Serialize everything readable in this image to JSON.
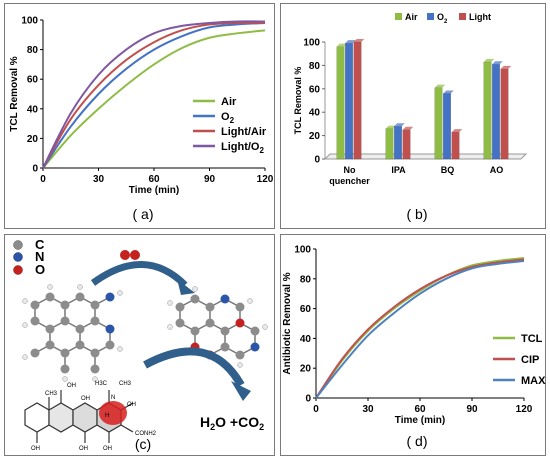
{
  "captions": {
    "a": "( a)",
    "b": "( b)",
    "c": "(c)",
    "d": "( d)"
  },
  "colors": {
    "air": "#8fbc45",
    "o2": "#4472c4",
    "light": "#c0504d",
    "light_o2": "#7e58a2",
    "max": "#4f81bd"
  },
  "chart_data": [
    {
      "id": "a",
      "type": "line",
      "ylabel": "TCL Removal %",
      "xlabel": "Time (min)",
      "xlim": [
        0,
        120
      ],
      "ylim": [
        0,
        100
      ],
      "xticks": [
        "0",
        "30",
        "60",
        "90",
        "120"
      ],
      "yticks": [
        "0",
        "20",
        "40",
        "60",
        "80",
        "100"
      ],
      "legend": "bottom-right",
      "series": [
        {
          "name": "Air",
          "color": "#8fbc45",
          "x": [
            0,
            15,
            30,
            45,
            60,
            75,
            90,
            105,
            120
          ],
          "values": [
            0,
            22,
            40,
            56,
            70,
            81,
            88,
            91,
            93
          ]
        },
        {
          "name": "O2",
          "color": "#4472c4",
          "x": [
            0,
            15,
            30,
            45,
            60,
            75,
            90,
            105,
            120
          ],
          "values": [
            0,
            28,
            50,
            67,
            80,
            89,
            95,
            97,
            98
          ]
        },
        {
          "name": "Light/Air",
          "color": "#c0504d",
          "x": [
            0,
            15,
            30,
            45,
            60,
            75,
            90,
            105,
            120
          ],
          "values": [
            0,
            33,
            56,
            73,
            85,
            93,
            97,
            98,
            98
          ]
        },
        {
          "name": "Light/O2",
          "color": "#7e58a2",
          "x": [
            0,
            15,
            30,
            45,
            60,
            75,
            90,
            105,
            120
          ],
          "values": [
            0,
            37,
            63,
            80,
            91,
            96,
            98,
            99,
            99
          ]
        }
      ]
    },
    {
      "id": "b",
      "type": "bar",
      "ylabel": "TCL Removal %",
      "ylim": [
        0,
        100
      ],
      "yticks": [
        "0",
        "20",
        "40",
        "60",
        "80",
        "100"
      ],
      "categories": [
        "No quencher",
        "IPA",
        "BQ",
        "AO"
      ],
      "legend": "top",
      "series": [
        {
          "name": "Air",
          "color": "#8fbc45",
          "values": [
            96,
            26,
            61,
            83
          ]
        },
        {
          "name": "O2",
          "color": "#4472c4",
          "values": [
            99,
            28,
            56,
            81
          ]
        },
        {
          "name": "Light",
          "color": "#c0504d",
          "values": [
            100,
            25,
            23,
            77
          ]
        }
      ]
    },
    {
      "id": "d",
      "type": "line",
      "ylabel": "Antibiotic Removal %",
      "xlabel": "Time (min)",
      "xlim": [
        0,
        120
      ],
      "ylim": [
        0,
        100
      ],
      "xticks": [
        "0",
        "30",
        "60",
        "90",
        "120"
      ],
      "yticks": [
        "0",
        "20",
        "40",
        "60",
        "80",
        "100"
      ],
      "legend": "right",
      "series": [
        {
          "name": "TCL",
          "color": "#8fbc45",
          "x": [
            0,
            15,
            30,
            45,
            60,
            75,
            90,
            105,
            120
          ],
          "values": [
            0,
            25,
            45,
            60,
            72,
            82,
            89,
            92,
            94
          ]
        },
        {
          "name": "CIP",
          "color": "#c0504d",
          "x": [
            0,
            15,
            30,
            45,
            60,
            75,
            90,
            105,
            120
          ],
          "values": [
            0,
            26,
            46,
            61,
            73,
            82,
            88,
            91,
            93
          ]
        },
        {
          "name": "MAX",
          "color": "#4f81bd",
          "x": [
            0,
            15,
            30,
            45,
            60,
            75,
            90,
            105,
            120
          ],
          "values": [
            0,
            22,
            42,
            57,
            70,
            80,
            87,
            90,
            92
          ]
        }
      ]
    }
  ],
  "panel_c": {
    "legend": [
      {
        "symbol": "C",
        "color": "#8c8c8c"
      },
      {
        "symbol": "N",
        "color": "#2a55a8"
      },
      {
        "symbol": "O",
        "color": "#c4221e"
      }
    ],
    "product_h2o": "H",
    "product_sub2": "2",
    "product_rest": "O +CO",
    "product_sub2b": "2",
    "structure_labels": [
      "OH",
      "CH3",
      "OH",
      "H3C",
      "CH3",
      "N",
      "OH",
      "OH",
      "OH",
      "OH",
      "CONH2",
      "H"
    ]
  }
}
